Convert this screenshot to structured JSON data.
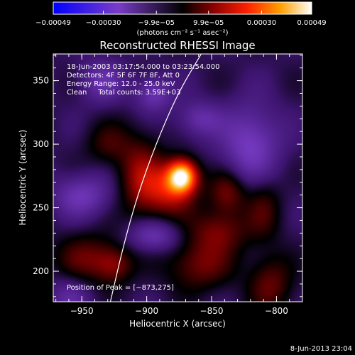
{
  "chart_data": {
    "type": "heatmap",
    "title": "Reconstructed RHESSI Image",
    "xlabel": "Heliocentric X (arcsec)",
    "ylabel": "Heliocentric Y (arcsec)",
    "xlim": [
      -972,
      -780
    ],
    "ylim": [
      176,
      371
    ],
    "x_ticks": [
      -950,
      -900,
      -850,
      -800
    ],
    "y_ticks": [
      200,
      250,
      300,
      350
    ],
    "x_tick_labels": [
      "−950",
      "−900",
      "−850",
      "−800"
    ],
    "y_tick_labels": [
      "200",
      "250",
      "300",
      "350"
    ],
    "colorbar": {
      "min": -0.00049,
      "max": 0.00049,
      "tick_values": [
        -0.00049,
        -0.0003,
        -9.9e-05,
        9.9e-05,
        0.0003,
        0.00049
      ],
      "tick_labels": [
        "−0.00049",
        "−0.00030",
        "−9.9e−05",
        "9.9e−05",
        "0.00030",
        "0.00049"
      ],
      "unit_label": "(photons cm⁻² s⁻¹ asec⁻²)"
    },
    "annotations": {
      "time_range": "18-Jun-2003 03:17:54.000 to 03:23:54.000",
      "detectors": "Detectors: 4F 5F 6F 7F 8F, Att 0",
      "energy_range": "Energy Range: 12.0 - 25.0 keV",
      "clean": "Clean     Total counts: 3.59E+03",
      "peak": "Position of Peak = [−873,275]"
    },
    "peak_position": [
      -873,
      275
    ],
    "sources": [
      {
        "x": -873,
        "y": 275,
        "sx": 8,
        "sy": 9,
        "amp": 1.0
      },
      {
        "x": -883,
        "y": 264,
        "sx": 14,
        "sy": 14,
        "amp": 0.45
      },
      {
        "x": -905,
        "y": 275,
        "sx": 12,
        "sy": 22,
        "amp": 0.35
      },
      {
        "x": -838,
        "y": 262,
        "sx": 10,
        "sy": 12,
        "amp": 0.32
      },
      {
        "x": -845,
        "y": 232,
        "sx": 16,
        "sy": 12,
        "amp": 0.3
      },
      {
        "x": -860,
        "y": 205,
        "sx": 18,
        "sy": 14,
        "amp": 0.3
      },
      {
        "x": -805,
        "y": 190,
        "sx": 12,
        "sy": 16,
        "amp": 0.28
      },
      {
        "x": -945,
        "y": 210,
        "sx": 18,
        "sy": 14,
        "amp": 0.28
      },
      {
        "x": -925,
        "y": 205,
        "sx": 10,
        "sy": 10,
        "amp": 0.25
      },
      {
        "x": -930,
        "y": 300,
        "sx": 12,
        "sy": 12,
        "amp": 0.2
      },
      {
        "x": -810,
        "y": 250,
        "sx": 10,
        "sy": 18,
        "amp": 0.22
      },
      {
        "x": -895,
        "y": 340,
        "sx": 10,
        "sy": 10,
        "amp": -0.3
      },
      {
        "x": -820,
        "y": 300,
        "sx": 16,
        "sy": 22,
        "amp": -0.35
      },
      {
        "x": -950,
        "y": 260,
        "sx": 16,
        "sy": 12,
        "amp": -0.3
      },
      {
        "x": -895,
        "y": 228,
        "sx": 14,
        "sy": 9,
        "amp": -0.3
      },
      {
        "x": -935,
        "y": 350,
        "sx": 12,
        "sy": 12,
        "amp": -0.25
      },
      {
        "x": -860,
        "y": 320,
        "sx": 12,
        "sy": 10,
        "amp": -0.25
      },
      {
        "x": -960,
        "y": 180,
        "sx": 12,
        "sy": 12,
        "amp": -0.2
      }
    ],
    "limb_curve": [
      [
        -928,
        176
      ],
      [
        -918,
        220
      ],
      [
        -907,
        260
      ],
      [
        -893,
        300
      ],
      [
        -876,
        340
      ],
      [
        -858,
        371
      ]
    ]
  },
  "footer": {
    "timestamp": "8-Jun-2013 23:04"
  }
}
